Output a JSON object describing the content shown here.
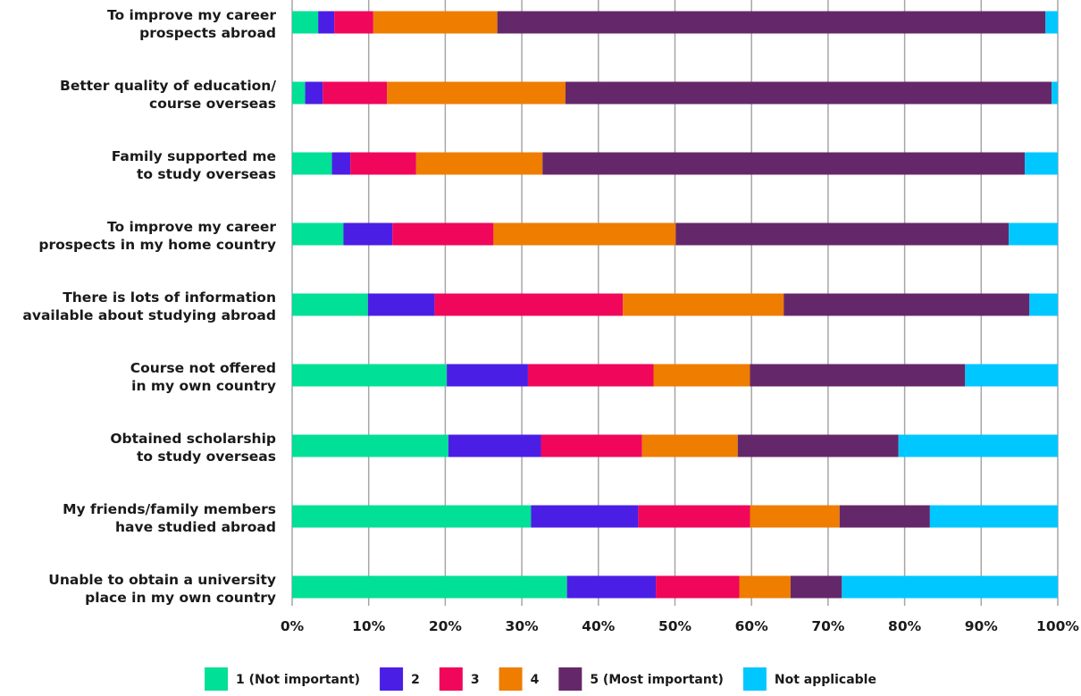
{
  "chart_data": {
    "type": "bar",
    "orientation": "horizontal",
    "stacked": true,
    "title": "",
    "xlabel": "",
    "ylabel": "",
    "xlim": [
      0,
      100
    ],
    "x_ticks": [
      "0%",
      "10%",
      "20%",
      "30%",
      "40%",
      "50%",
      "60%",
      "70%",
      "80%",
      "90%",
      "100%"
    ],
    "grid": true,
    "legend_position": "bottom",
    "categories": [
      [
        "To improve my career",
        "prospects abroad"
      ],
      [
        "Better quality of education/",
        "course overseas"
      ],
      [
        "Family supported me",
        "to study overseas"
      ],
      [
        "To improve my career",
        "prospects in my home country"
      ],
      [
        "There is lots of information",
        "available about studying abroad"
      ],
      [
        "Course not offered",
        "in my own country"
      ],
      [
        "Obtained scholarship",
        "to study overseas"
      ],
      [
        "My friends/family members",
        "have studied abroad"
      ],
      [
        "Unable to obtain a university",
        "place in my own country"
      ]
    ],
    "series": [
      {
        "name": "1 (Not important)",
        "color": "#00e096",
        "values": [
          3.4,
          1.7,
          5.2,
          6.7,
          9.9,
          20.2,
          20.4,
          31.2,
          35.9
        ]
      },
      {
        "name": "2",
        "color": "#4b1ee6",
        "values": [
          2.1,
          2.3,
          2.4,
          6.4,
          8.7,
          10.6,
          12.1,
          14.0,
          11.6
        ]
      },
      {
        "name": "3",
        "color": "#f0065a",
        "values": [
          5.1,
          8.4,
          8.6,
          13.2,
          24.6,
          16.4,
          13.2,
          14.6,
          10.9
        ]
      },
      {
        "name": "4",
        "color": "#ee7d00",
        "values": [
          16.2,
          23.3,
          16.5,
          23.8,
          21.0,
          12.6,
          12.5,
          11.7,
          6.7
        ]
      },
      {
        "name": "5 (Most important)",
        "color": "#64286a",
        "values": [
          71.6,
          63.5,
          63.0,
          43.5,
          32.1,
          28.1,
          21.0,
          11.8,
          6.7
        ]
      },
      {
        "name": "Not applicable",
        "color": "#00c7ff",
        "values": [
          1.6,
          0.8,
          4.3,
          6.4,
          3.7,
          12.1,
          20.8,
          16.7,
          28.2
        ]
      }
    ]
  }
}
